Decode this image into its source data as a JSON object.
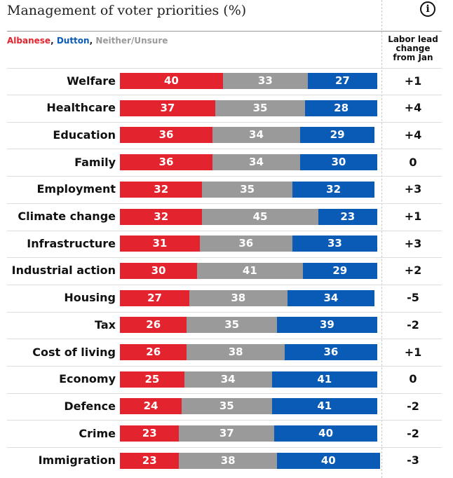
{
  "title": "Management of voter priorities (%)",
  "info_icon": "info-icon",
  "legend": {
    "albanese": "Albanese",
    "dutton": "Dutton",
    "neither": "Neither/Unsure",
    "separator": ", "
  },
  "column_header": [
    "Labor lead",
    "change",
    "from Jan"
  ],
  "colors": {
    "albanese": "#e3232d",
    "neither": "#9a9a9a",
    "dutton": "#0a5bb5"
  },
  "chart_data": {
    "type": "bar",
    "stacked": true,
    "orientation": "horizontal",
    "title": "Management of voter priorities (%)",
    "categories": [
      "Welfare",
      "Healthcare",
      "Education",
      "Family",
      "Employment",
      "Climate change",
      "Infrastructure",
      "Industrial action",
      "Housing",
      "Tax",
      "Cost of living",
      "Economy",
      "Defence",
      "Crime",
      "Immigration"
    ],
    "series": [
      {
        "name": "Albanese",
        "values": [
          40,
          37,
          36,
          36,
          32,
          32,
          31,
          30,
          27,
          26,
          26,
          25,
          24,
          23,
          23
        ]
      },
      {
        "name": "Neither/Unsure",
        "values": [
          33,
          35,
          34,
          34,
          35,
          45,
          36,
          41,
          38,
          35,
          38,
          34,
          35,
          37,
          38
        ]
      },
      {
        "name": "Dutton",
        "values": [
          27,
          28,
          29,
          30,
          32,
          23,
          33,
          29,
          34,
          39,
          36,
          41,
          41,
          40,
          40
        ]
      }
    ],
    "labor_lead_change": [
      "+1",
      "+4",
      "+4",
      "0",
      "+3",
      "+1",
      "+3",
      "+2",
      "-5",
      "-2",
      "+1",
      "0",
      "-2",
      "-2",
      "-3"
    ],
    "xlim": [
      0,
      100
    ]
  }
}
